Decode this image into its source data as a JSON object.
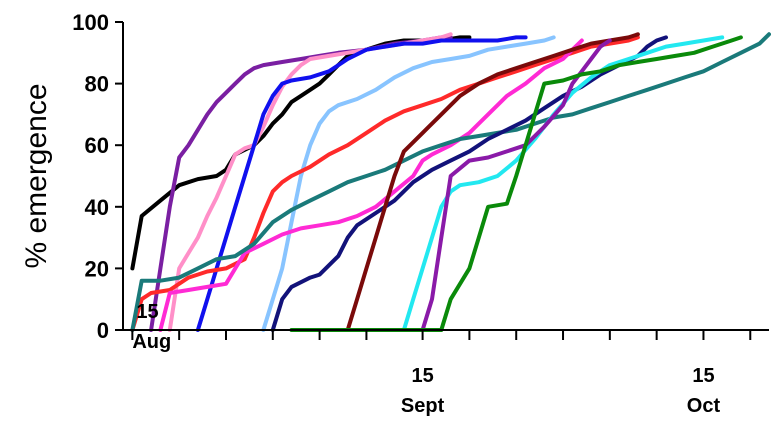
{
  "chart_data": {
    "type": "line",
    "ylabel": "% emergence",
    "xlabel": "",
    "ylim": [
      0,
      100
    ],
    "xlim": [
      -1,
      68
    ],
    "y_ticks": [
      0,
      20,
      40,
      60,
      80,
      100
    ],
    "x_ticks": [
      0,
      5,
      10,
      15,
      20,
      25,
      31,
      36,
      41,
      46,
      51,
      56,
      61,
      66
    ],
    "x_tick_labels": [
      {
        "x": 0,
        "day": "15",
        "month": "Aug"
      },
      {
        "x": 31,
        "day": "15",
        "month": "Sept"
      },
      {
        "x": 61,
        "day": "15",
        "month": "Oct"
      }
    ],
    "grid": false,
    "series": [
      {
        "color": "#000000",
        "points": [
          [
            0,
            20
          ],
          [
            1,
            37
          ],
          [
            3,
            42
          ],
          [
            5,
            47
          ],
          [
            7,
            49
          ],
          [
            9,
            50
          ],
          [
            10,
            52
          ],
          [
            11,
            57
          ],
          [
            13,
            60
          ],
          [
            14,
            63
          ],
          [
            15,
            67
          ],
          [
            16,
            70
          ],
          [
            17,
            74
          ],
          [
            18,
            76
          ],
          [
            19,
            78
          ],
          [
            20,
            80
          ],
          [
            21,
            83
          ],
          [
            22,
            86
          ],
          [
            23,
            89
          ],
          [
            25,
            91
          ],
          [
            27,
            93
          ],
          [
            29,
            94
          ],
          [
            31,
            94
          ],
          [
            33,
            94
          ],
          [
            35,
            95
          ],
          [
            36,
            95
          ]
        ]
      },
      {
        "color": "#7a1fa2",
        "points": [
          [
            2,
            0
          ],
          [
            3,
            20
          ],
          [
            4,
            40
          ],
          [
            5,
            56
          ],
          [
            6,
            60
          ],
          [
            7,
            65
          ],
          [
            8,
            70
          ],
          [
            9,
            74
          ],
          [
            10,
            77
          ],
          [
            11,
            80
          ],
          [
            12,
            83
          ],
          [
            13,
            85
          ],
          [
            14,
            86
          ],
          [
            16,
            87
          ],
          [
            18,
            88
          ],
          [
            20,
            89
          ],
          [
            22,
            90
          ],
          [
            25,
            91
          ],
          [
            28,
            93
          ],
          [
            31,
            94
          ],
          [
            33,
            95
          ],
          [
            34,
            95
          ]
        ]
      },
      {
        "color": "#ff8fc8",
        "points": [
          [
            4,
            0
          ],
          [
            5,
            20
          ],
          [
            6,
            25
          ],
          [
            7,
            30
          ],
          [
            8,
            37
          ],
          [
            9,
            43
          ],
          [
            10,
            50
          ],
          [
            11,
            57
          ],
          [
            12,
            59
          ],
          [
            13,
            60
          ],
          [
            14,
            66
          ],
          [
            15,
            73
          ],
          [
            16,
            79
          ],
          [
            17,
            83
          ],
          [
            18,
            86
          ],
          [
            19,
            88
          ],
          [
            21,
            89
          ],
          [
            23,
            90
          ],
          [
            25,
            91
          ],
          [
            27,
            92
          ],
          [
            29,
            93
          ],
          [
            31,
            94
          ],
          [
            33,
            95
          ],
          [
            34,
            96
          ]
        ]
      },
      {
        "color": "#1010ee",
        "points": [
          [
            7,
            0
          ],
          [
            8,
            10
          ],
          [
            9,
            20
          ],
          [
            10,
            30
          ],
          [
            11,
            40
          ],
          [
            12,
            50
          ],
          [
            13,
            60
          ],
          [
            14,
            70
          ],
          [
            15,
            76
          ],
          [
            16,
            80
          ],
          [
            17,
            81
          ],
          [
            19,
            82
          ],
          [
            21,
            84
          ],
          [
            23,
            88
          ],
          [
            25,
            91
          ],
          [
            27,
            92
          ],
          [
            29,
            93
          ],
          [
            31,
            93
          ],
          [
            33,
            94
          ],
          [
            35,
            94
          ],
          [
            37,
            94
          ],
          [
            39,
            94
          ],
          [
            41,
            95
          ],
          [
            42,
            95
          ]
        ]
      },
      {
        "color": "#88c4ff",
        "points": [
          [
            14,
            0
          ],
          [
            15,
            10
          ],
          [
            16,
            20
          ],
          [
            17,
            35
          ],
          [
            18,
            50
          ],
          [
            19,
            60
          ],
          [
            20,
            67
          ],
          [
            21,
            71
          ],
          [
            22,
            73
          ],
          [
            24,
            75
          ],
          [
            26,
            78
          ],
          [
            28,
            82
          ],
          [
            30,
            85
          ],
          [
            32,
            87
          ],
          [
            34,
            88
          ],
          [
            36,
            89
          ],
          [
            38,
            91
          ],
          [
            40,
            92
          ],
          [
            42,
            93
          ],
          [
            44,
            94
          ],
          [
            45,
            95
          ]
        ]
      },
      {
        "color": "#ff2a2a",
        "points": [
          [
            0,
            0
          ],
          [
            1,
            10
          ],
          [
            2,
            12
          ],
          [
            4,
            13
          ],
          [
            6,
            17
          ],
          [
            8,
            19
          ],
          [
            10,
            20
          ],
          [
            12,
            23
          ],
          [
            13,
            30
          ],
          [
            14,
            38
          ],
          [
            15,
            45
          ],
          [
            16,
            48
          ],
          [
            17,
            50
          ],
          [
            19,
            53
          ],
          [
            21,
            57
          ],
          [
            23,
            60
          ],
          [
            25,
            64
          ],
          [
            27,
            68
          ],
          [
            29,
            71
          ],
          [
            31,
            73
          ],
          [
            33,
            75
          ],
          [
            35,
            78
          ],
          [
            37,
            80
          ],
          [
            39,
            82
          ],
          [
            41,
            84
          ],
          [
            43,
            86
          ],
          [
            45,
            88
          ],
          [
            47,
            90
          ],
          [
            49,
            92
          ],
          [
            51,
            93
          ],
          [
            53,
            94
          ],
          [
            54,
            95
          ]
        ]
      },
      {
        "color": "#ff2ad4",
        "points": [
          [
            3,
            0
          ],
          [
            4,
            12
          ],
          [
            6,
            13
          ],
          [
            8,
            14
          ],
          [
            10,
            15
          ],
          [
            11,
            20
          ],
          [
            12,
            25
          ],
          [
            14,
            28
          ],
          [
            16,
            31
          ],
          [
            18,
            33
          ],
          [
            20,
            34
          ],
          [
            22,
            35
          ],
          [
            24,
            37
          ],
          [
            26,
            40
          ],
          [
            28,
            45
          ],
          [
            30,
            50
          ],
          [
            31,
            55
          ],
          [
            32,
            57
          ],
          [
            34,
            60
          ],
          [
            36,
            64
          ],
          [
            38,
            70
          ],
          [
            40,
            76
          ],
          [
            42,
            80
          ],
          [
            44,
            85
          ],
          [
            46,
            88
          ],
          [
            47,
            91
          ],
          [
            48,
            94
          ]
        ]
      },
      {
        "color": "#1a7a7a",
        "points": [
          [
            0,
            0
          ],
          [
            1,
            16
          ],
          [
            3,
            16
          ],
          [
            5,
            17
          ],
          [
            7,
            20
          ],
          [
            9,
            23
          ],
          [
            11,
            24
          ],
          [
            13,
            28
          ],
          [
            15,
            35
          ],
          [
            17,
            39
          ],
          [
            19,
            42
          ],
          [
            21,
            45
          ],
          [
            23,
            48
          ],
          [
            25,
            50
          ],
          [
            27,
            52
          ],
          [
            29,
            55
          ],
          [
            31,
            58
          ],
          [
            33,
            60
          ],
          [
            35,
            62
          ],
          [
            37,
            63
          ],
          [
            39,
            64
          ],
          [
            41,
            65
          ],
          [
            43,
            67
          ],
          [
            45,
            69
          ],
          [
            47,
            70
          ],
          [
            49,
            72
          ],
          [
            51,
            74
          ],
          [
            53,
            76
          ],
          [
            55,
            78
          ],
          [
            57,
            80
          ],
          [
            59,
            82
          ],
          [
            61,
            84
          ],
          [
            63,
            87
          ],
          [
            65,
            90
          ],
          [
            67,
            93
          ],
          [
            68,
            96
          ]
        ]
      },
      {
        "color": "#12127a",
        "points": [
          [
            15,
            0
          ],
          [
            16,
            10
          ],
          [
            17,
            14
          ],
          [
            19,
            17
          ],
          [
            20,
            18
          ],
          [
            22,
            24
          ],
          [
            23,
            30
          ],
          [
            24,
            34
          ],
          [
            26,
            38
          ],
          [
            28,
            42
          ],
          [
            30,
            48
          ],
          [
            32,
            52
          ],
          [
            34,
            55
          ],
          [
            36,
            58
          ],
          [
            38,
            62
          ],
          [
            40,
            65
          ],
          [
            42,
            68
          ],
          [
            44,
            72
          ],
          [
            46,
            76
          ],
          [
            48,
            79
          ],
          [
            50,
            83
          ],
          [
            52,
            86
          ],
          [
            54,
            89
          ],
          [
            55,
            92
          ],
          [
            56,
            94
          ],
          [
            57,
            95
          ]
        ]
      },
      {
        "color": "#7a0a0a",
        "points": [
          [
            23,
            0
          ],
          [
            24,
            10
          ],
          [
            25,
            20
          ],
          [
            26,
            30
          ],
          [
            27,
            40
          ],
          [
            28,
            50
          ],
          [
            29,
            58
          ],
          [
            31,
            64
          ],
          [
            33,
            70
          ],
          [
            35,
            76
          ],
          [
            37,
            80
          ],
          [
            39,
            83
          ],
          [
            41,
            85
          ],
          [
            43,
            87
          ],
          [
            45,
            89
          ],
          [
            47,
            91
          ],
          [
            49,
            93
          ],
          [
            51,
            94
          ],
          [
            53,
            95
          ],
          [
            54,
            96
          ]
        ]
      },
      {
        "color": "#22e8f0",
        "points": [
          [
            29,
            0
          ],
          [
            30,
            10
          ],
          [
            31,
            20
          ],
          [
            32,
            30
          ],
          [
            33,
            40
          ],
          [
            34,
            45
          ],
          [
            35,
            47
          ],
          [
            37,
            48
          ],
          [
            39,
            50
          ],
          [
            41,
            55
          ],
          [
            43,
            62
          ],
          [
            45,
            70
          ],
          [
            47,
            77
          ],
          [
            49,
            82
          ],
          [
            51,
            86
          ],
          [
            53,
            88
          ],
          [
            55,
            90
          ],
          [
            57,
            92
          ],
          [
            59,
            93
          ],
          [
            61,
            94
          ],
          [
            63,
            95
          ]
        ]
      },
      {
        "color": "#8a1aa8",
        "points": [
          [
            31,
            0
          ],
          [
            32,
            10
          ],
          [
            33,
            30
          ],
          [
            34,
            50
          ],
          [
            36,
            55
          ],
          [
            38,
            56
          ],
          [
            40,
            58
          ],
          [
            42,
            60
          ],
          [
            44,
            66
          ],
          [
            46,
            73
          ],
          [
            47,
            80
          ],
          [
            48,
            84
          ],
          [
            49,
            88
          ],
          [
            50,
            92
          ],
          [
            51,
            94
          ]
        ]
      },
      {
        "color": "#0a8a0a",
        "points": [
          [
            17,
            0
          ],
          [
            20,
            0
          ],
          [
            25,
            0
          ],
          [
            30,
            0
          ],
          [
            33,
            0
          ],
          [
            34,
            10
          ],
          [
            36,
            20
          ],
          [
            37,
            30
          ],
          [
            38,
            40
          ],
          [
            40,
            41
          ],
          [
            41,
            50
          ],
          [
            42,
            60
          ],
          [
            43,
            70
          ],
          [
            44,
            80
          ],
          [
            46,
            81
          ],
          [
            48,
            83
          ],
          [
            50,
            84
          ],
          [
            52,
            86
          ],
          [
            54,
            87
          ],
          [
            56,
            88
          ],
          [
            58,
            89
          ],
          [
            60,
            90
          ],
          [
            62,
            92
          ],
          [
            64,
            94
          ],
          [
            65,
            95
          ]
        ]
      }
    ]
  }
}
